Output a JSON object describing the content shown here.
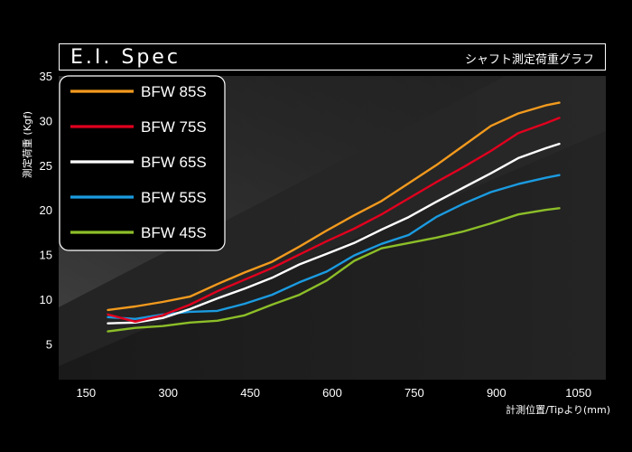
{
  "header": {
    "title": "E.I. Spec",
    "subtitle": "シャフト測定荷重グラフ"
  },
  "chart_data": {
    "type": "line",
    "ylabel": "測定荷重 (Kgf)",
    "xlabel": "計測位置/Tipより(mm)",
    "xticks": [
      150,
      300,
      450,
      600,
      750,
      900,
      1050
    ],
    "yticks": [
      5,
      10,
      15,
      20,
      25,
      30,
      35
    ],
    "xlim": [
      100,
      1100
    ],
    "ylim": [
      1,
      35
    ],
    "legend_placement": "top-left",
    "grid": false,
    "series": [
      {
        "name": "BFW 85S",
        "color": "#f29a1e",
        "x": [
          190,
          240,
          290,
          340,
          390,
          440,
          490,
          540,
          590,
          640,
          690,
          740,
          790,
          840,
          890,
          940,
          990,
          1015
        ],
        "y": [
          8.8,
          9.2,
          9.7,
          10.3,
          11.7,
          13.0,
          14.2,
          15.9,
          17.7,
          19.4,
          21.0,
          23.0,
          25.0,
          27.2,
          29.4,
          30.8,
          31.7,
          32.0
        ]
      },
      {
        "name": "BFW 75S",
        "color": "#e1001e",
        "x": [
          190,
          240,
          290,
          340,
          390,
          440,
          490,
          540,
          590,
          640,
          690,
          740,
          790,
          840,
          890,
          940,
          990,
          1015
        ],
        "y": [
          8.3,
          7.5,
          8.2,
          9.4,
          10.9,
          12.2,
          13.5,
          15.0,
          16.5,
          17.9,
          19.5,
          21.3,
          23.1,
          24.8,
          26.6,
          28.6,
          29.7,
          30.3
        ]
      },
      {
        "name": "BFW 65S",
        "color": "#ffffff",
        "x": [
          190,
          240,
          290,
          340,
          390,
          440,
          490,
          540,
          590,
          640,
          690,
          740,
          790,
          840,
          890,
          940,
          990,
          1015
        ],
        "y": [
          7.3,
          7.4,
          7.9,
          8.9,
          10.1,
          11.2,
          12.4,
          13.9,
          15.1,
          16.3,
          17.8,
          19.2,
          20.9,
          22.5,
          24.1,
          25.8,
          26.9,
          27.4
        ]
      },
      {
        "name": "BFW 55S",
        "color": "#1b9be0",
        "x": [
          190,
          240,
          290,
          340,
          390,
          440,
          490,
          540,
          590,
          640,
          690,
          740,
          790,
          840,
          890,
          940,
          990,
          1015
        ],
        "y": [
          8.0,
          7.8,
          8.3,
          8.6,
          8.7,
          9.5,
          10.5,
          11.9,
          13.1,
          14.9,
          16.2,
          17.2,
          19.2,
          20.7,
          22.0,
          22.9,
          23.6,
          23.9
        ]
      },
      {
        "name": "BFW 45S",
        "color": "#8cbe28",
        "x": [
          190,
          240,
          290,
          340,
          390,
          440,
          490,
          540,
          590,
          640,
          690,
          740,
          790,
          840,
          890,
          940,
          990,
          1015
        ],
        "y": [
          6.4,
          6.8,
          7.0,
          7.4,
          7.6,
          8.2,
          9.4,
          10.5,
          12.1,
          14.3,
          15.7,
          16.3,
          16.9,
          17.6,
          18.5,
          19.5,
          20.0,
          20.2
        ]
      }
    ]
  }
}
